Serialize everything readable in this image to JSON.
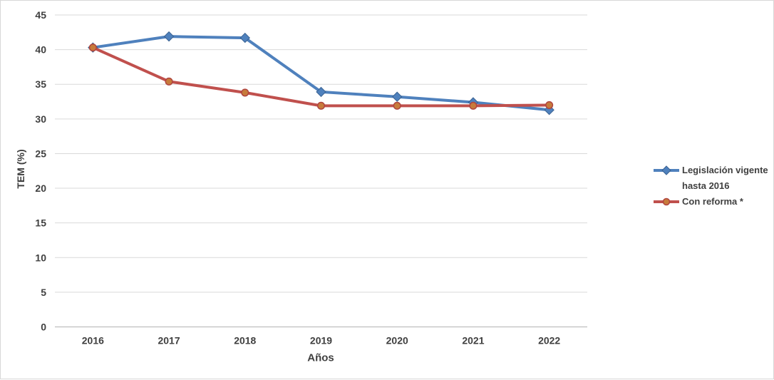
{
  "chart_data": {
    "type": "line",
    "title": "",
    "xlabel": "Años",
    "ylabel": "TEM (%)",
    "x_categories": [
      "2016",
      "2017",
      "2018",
      "2019",
      "2020",
      "2021",
      "2022"
    ],
    "ylim": [
      0,
      45
    ],
    "ytick_step": 5,
    "ytick_labels": [
      "0",
      "5",
      "10",
      "15",
      "20",
      "25",
      "30",
      "35",
      "40",
      "45"
    ],
    "grid": true,
    "legend_position": "right",
    "series": [
      {
        "name": "Legislación vigente hasta 2016",
        "legend_lines": [
          "Legislación vigente",
          "hasta 2016"
        ],
        "color": "#4F81BD",
        "marker": "diamond",
        "marker_fill": "#4F81BD",
        "marker_stroke": "#3A6292",
        "values": [
          40.3,
          41.9,
          41.7,
          33.9,
          33.2,
          32.4,
          31.3
        ]
      },
      {
        "name": "Con reforma *",
        "legend_lines": [
          "Con reforma *"
        ],
        "color": "#C0504D",
        "marker": "circle",
        "marker_fill": "#C77B3B",
        "marker_stroke": "#B0453F",
        "values": [
          40.3,
          35.4,
          33.8,
          31.9,
          31.9,
          31.9,
          32.0
        ]
      }
    ],
    "colors": {
      "gridline": "#D9D9D9",
      "axis_line": "#BFBFBF",
      "text": "#404040",
      "background": "#FFFFFF",
      "border": "#D8D8D8"
    }
  }
}
